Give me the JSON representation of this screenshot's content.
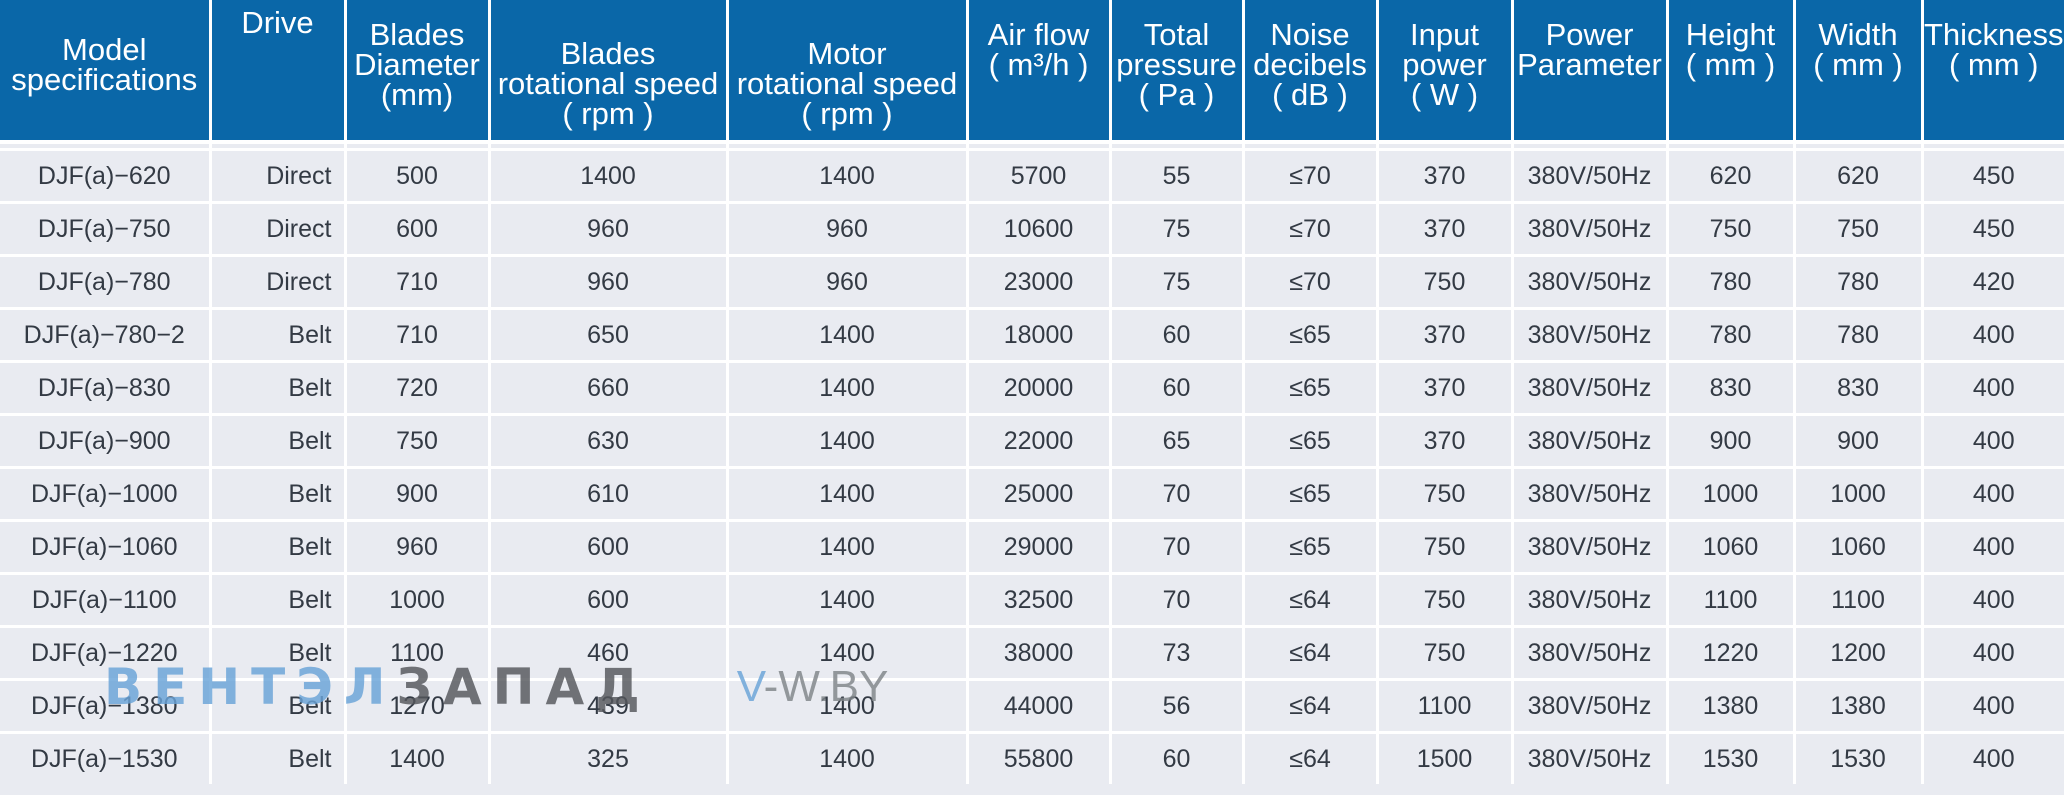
{
  "table": {
    "headers": [
      "Model\nspecifications",
      "Drive",
      "Blades\nDiameter\n(mm)",
      "Blades\nrotational speed\n( rpm )",
      "Motor\nrotational speed\n( rpm )",
      "Air flow\n( m³/h )",
      "Total\npressure\n( Pa )",
      "Noise\ndecibels\n( dB )",
      "Input\npower\n( W )",
      "Power\nParameter",
      "Height\n( mm )",
      "Width\n( mm )",
      "Thickness\n( mm )"
    ],
    "rows": [
      [
        "DJF(a)−620",
        "Direct",
        "500",
        "1400",
        "1400",
        "5700",
        "55",
        "≤70",
        "370",
        "380V/50Hz",
        "620",
        "620",
        "450"
      ],
      [
        "DJF(a)−750",
        "Direct",
        "600",
        "960",
        "960",
        "10600",
        "75",
        "≤70",
        "370",
        "380V/50Hz",
        "750",
        "750",
        "450"
      ],
      [
        "DJF(a)−780",
        "Direct",
        "710",
        "960",
        "960",
        "23000",
        "75",
        "≤70",
        "750",
        "380V/50Hz",
        "780",
        "780",
        "420"
      ],
      [
        "DJF(a)−780−2",
        "Belt",
        "710",
        "650",
        "1400",
        "18000",
        "60",
        "≤65",
        "370",
        "380V/50Hz",
        "780",
        "780",
        "400"
      ],
      [
        "DJF(a)−830",
        "Belt",
        "720",
        "660",
        "1400",
        "20000",
        "60",
        "≤65",
        "370",
        "380V/50Hz",
        "830",
        "830",
        "400"
      ],
      [
        "DJF(a)−900",
        "Belt",
        "750",
        "630",
        "1400",
        "22000",
        "65",
        "≤65",
        "370",
        "380V/50Hz",
        "900",
        "900",
        "400"
      ],
      [
        "DJF(a)−1000",
        "Belt",
        "900",
        "610",
        "1400",
        "25000",
        "70",
        "≤65",
        "750",
        "380V/50Hz",
        "1000",
        "1000",
        "400"
      ],
      [
        "DJF(a)−1060",
        "Belt",
        "960",
        "600",
        "1400",
        "29000",
        "70",
        "≤65",
        "750",
        "380V/50Hz",
        "1060",
        "1060",
        "400"
      ],
      [
        "DJF(a)−1100",
        "Belt",
        "1000",
        "600",
        "1400",
        "32500",
        "70",
        "≤64",
        "750",
        "380V/50Hz",
        "1100",
        "1100",
        "400"
      ],
      [
        "DJF(a)−1220",
        "Belt",
        "1100",
        "460",
        "1400",
        "38000",
        "73",
        "≤64",
        "750",
        "380V/50Hz",
        "1220",
        "1200",
        "400"
      ],
      [
        "DJF(a)−1380",
        "Belt",
        "1270",
        "439",
        "1400",
        "44000",
        "56",
        "≤64",
        "1100",
        "380V/50Hz",
        "1380",
        "1380",
        "400"
      ],
      [
        "DJF(a)−1530",
        "Belt",
        "1400",
        "325",
        "1400",
        "55800",
        "60",
        "≤64",
        "1500",
        "380V/50Hz",
        "1530",
        "1530",
        "400"
      ]
    ]
  },
  "watermark": {
    "part1": "ВЕНТЭЛ",
    "part2": "ЗАПАД",
    "site_prefix": "V",
    "site_rest": "-W.BY"
  },
  "colors": {
    "header_bg": "#0a67a8",
    "body_bg": "#e9ebf1",
    "text": "#333a44"
  }
}
